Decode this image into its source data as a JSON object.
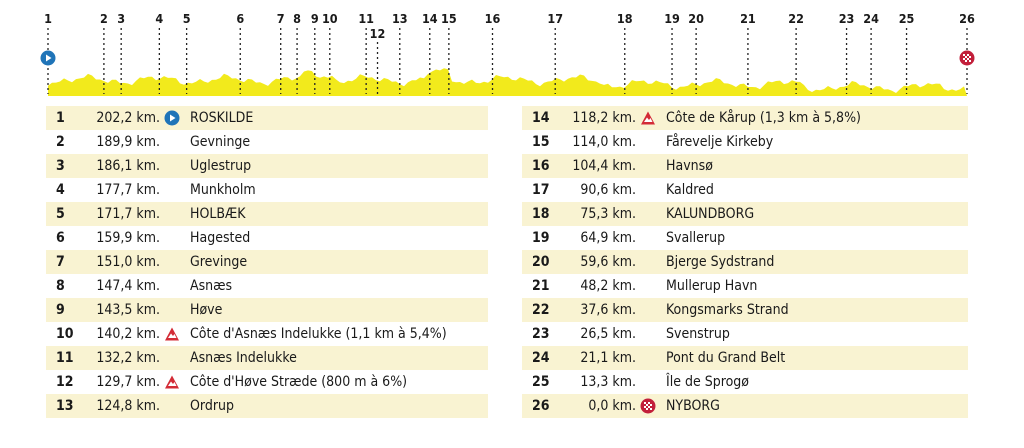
{
  "markers": [
    {
      "label": "1",
      "km": 202.2,
      "row": 0
    },
    {
      "label": "2",
      "km": 189.9,
      "row": 0
    },
    {
      "label": "3",
      "km": 186.1,
      "row": 0
    },
    {
      "label": "4",
      "km": 177.7,
      "row": 0
    },
    {
      "label": "5",
      "km": 171.7,
      "row": 0
    },
    {
      "label": "6",
      "km": 159.9,
      "row": 0
    },
    {
      "label": "7",
      "km": 151.0,
      "row": 0
    },
    {
      "label": "8",
      "km": 147.4,
      "row": 0
    },
    {
      "label": "9",
      "km": 143.5,
      "row": 0
    },
    {
      "label": "10",
      "km": 140.2,
      "row": 0
    },
    {
      "label": "11",
      "km": 132.2,
      "row": 0
    },
    {
      "label": "12",
      "km": 129.7,
      "row": 1
    },
    {
      "label": "13",
      "km": 124.8,
      "row": 0
    },
    {
      "label": "14",
      "km": 118.2,
      "row": 0
    },
    {
      "label": "15",
      "km": 114.0,
      "row": 0
    },
    {
      "label": "16",
      "km": 104.4,
      "row": 0
    },
    {
      "label": "17",
      "km": 90.6,
      "row": 0
    },
    {
      "label": "18",
      "km": 75.3,
      "row": 0
    },
    {
      "label": "19",
      "km": 64.9,
      "row": 0
    },
    {
      "label": "20",
      "km": 59.6,
      "row": 0
    },
    {
      "label": "21",
      "km": 48.2,
      "row": 0
    },
    {
      "label": "22",
      "km": 37.6,
      "row": 0
    },
    {
      "label": "23",
      "km": 26.5,
      "row": 0
    },
    {
      "label": "24",
      "km": 21.1,
      "row": 0
    },
    {
      "label": "25",
      "km": 13.3,
      "row": 0
    },
    {
      "label": "26",
      "km": 0.0,
      "row": 0
    }
  ],
  "left_table": [
    {
      "num": "1",
      "km": "202,2 km.",
      "icon": "start-icon",
      "place": "ROSKILDE"
    },
    {
      "num": "2",
      "km": "189,9 km.",
      "icon": "",
      "place": "Gevninge"
    },
    {
      "num": "3",
      "km": "186,1 km.",
      "icon": "",
      "place": "Uglestrup"
    },
    {
      "num": "4",
      "km": "177,7 km.",
      "icon": "",
      "place": "Munkholm"
    },
    {
      "num": "5",
      "km": "171,7 km.",
      "icon": "",
      "place": "HOLBÆK"
    },
    {
      "num": "6",
      "km": "159,9 km.",
      "icon": "",
      "place": "Hagested"
    },
    {
      "num": "7",
      "km": "151,0 km.",
      "icon": "",
      "place": "Grevinge"
    },
    {
      "num": "8",
      "km": "147,4 km.",
      "icon": "",
      "place": "Asnæs"
    },
    {
      "num": "9",
      "km": "143,5 km.",
      "icon": "",
      "place": "Høve"
    },
    {
      "num": "10",
      "km": "140,2 km.",
      "icon": "climb-icon",
      "place": "Côte d'Asnæs Indelukke (1,1 km à 5,4%)"
    },
    {
      "num": "11",
      "km": "132,2 km.",
      "icon": "",
      "place": "Asnæs Indelukke"
    },
    {
      "num": "12",
      "km": "129,7 km.",
      "icon": "climb-icon",
      "place": "Côte d'Høve Stræde (800 m à 6%)"
    },
    {
      "num": "13",
      "km": "124,8 km.",
      "icon": "",
      "place": "Ordrup"
    }
  ],
  "right_table": [
    {
      "num": "14",
      "km": "118,2 km.",
      "icon": "climb-icon",
      "place": "Côte de Kårup (1,3 km à 5,8%)"
    },
    {
      "num": "15",
      "km": "114,0 km.",
      "icon": "",
      "place": "Fårevelje Kirkeby"
    },
    {
      "num": "16",
      "km": "104,4 km.",
      "icon": "",
      "place": "Havnsø"
    },
    {
      "num": "17",
      "km": "90,6 km.",
      "icon": "",
      "place": "Kaldred"
    },
    {
      "num": "18",
      "km": "75,3 km.",
      "icon": "",
      "place": "KALUNDBORG"
    },
    {
      "num": "19",
      "km": "64,9 km.",
      "icon": "",
      "place": "Svallerup"
    },
    {
      "num": "20",
      "km": "59,6 km.",
      "icon": "",
      "place": "Bjerge Sydstrand"
    },
    {
      "num": "21",
      "km": "48,2 km.",
      "icon": "",
      "place": "Mullerup Havn"
    },
    {
      "num": "22",
      "km": "37,6 km.",
      "icon": "",
      "place": "Kongsmarks Strand"
    },
    {
      "num": "23",
      "km": "26,5 km.",
      "icon": "",
      "place": "Svenstrup"
    },
    {
      "num": "24",
      "km": "21,1 km.",
      "icon": "",
      "place": "Pont du Grand Belt"
    },
    {
      "num": "25",
      "km": "13,3 km.",
      "icon": "",
      "place": "Île de Sprogø"
    },
    {
      "num": "26",
      "km": "0,0 km.",
      "icon": "finish-icon",
      "place": "NYBORG"
    }
  ],
  "colors": {
    "profile_fill": "#f2ea1c",
    "stripe": "#f9f3d2",
    "start": "#1f74b8",
    "climb": "#d32b36",
    "finish": "#c21f3a"
  }
}
